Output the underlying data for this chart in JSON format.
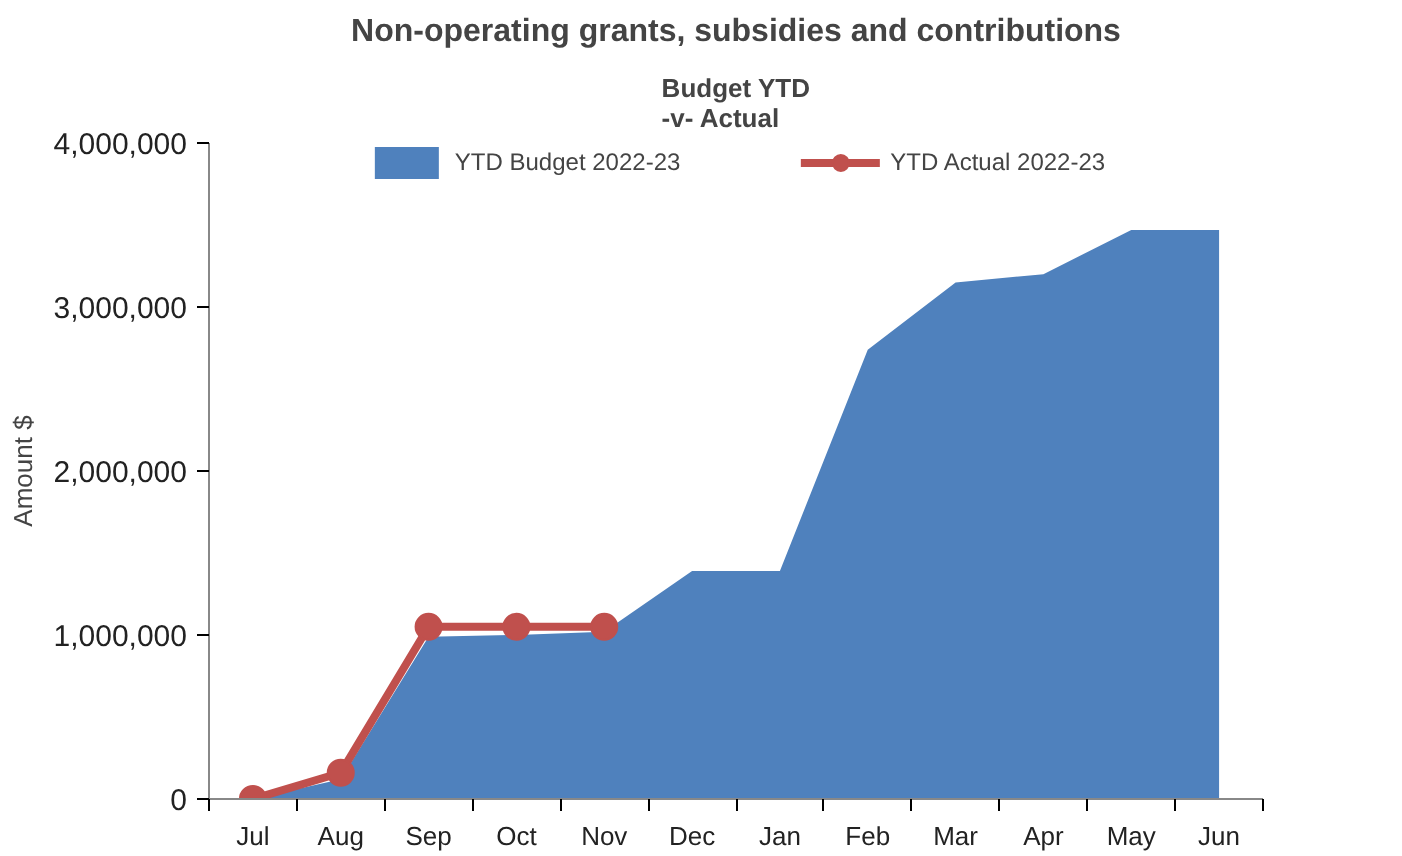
{
  "chart_data": {
    "type": "area",
    "title": "Non-operating grants, subsidies and contributions",
    "subtitle": "Budget YTD\n-v- Actual",
    "ylabel": "Amount $",
    "categories": [
      "Jul",
      "Aug",
      "Sep",
      "Oct",
      "Nov",
      "Dec",
      "Jan",
      "Feb",
      "Mar",
      "Apr",
      "May",
      "Jun"
    ],
    "series": [
      {
        "name": "YTD Budget 2022-23",
        "color": "#4f81bd",
        "values": [
          0,
          120000,
          990000,
          1000000,
          1020000,
          1390000,
          1390000,
          2740000,
          3150000,
          3200000,
          3470000,
          3470000
        ]
      },
      {
        "name": "YTD Actual 2022-23",
        "type": "line",
        "color": "#c0504d",
        "marker": "circle",
        "values": [
          0,
          160000,
          1050000,
          1050000,
          1050000,
          null,
          null,
          null,
          null,
          null,
          null,
          null
        ]
      }
    ],
    "ylim": [
      0,
      4000000
    ],
    "yticks": [
      0,
      {
        "value": 1000000,
        "label": "1,000,000"
      },
      {
        "value": 2000000,
        "label": "2,000,000"
      },
      {
        "value": 3000000,
        "label": "3,000,000"
      },
      {
        "value": 4000000,
        "label": "4,000,000"
      }
    ],
    "grid": false,
    "legend": "top"
  }
}
